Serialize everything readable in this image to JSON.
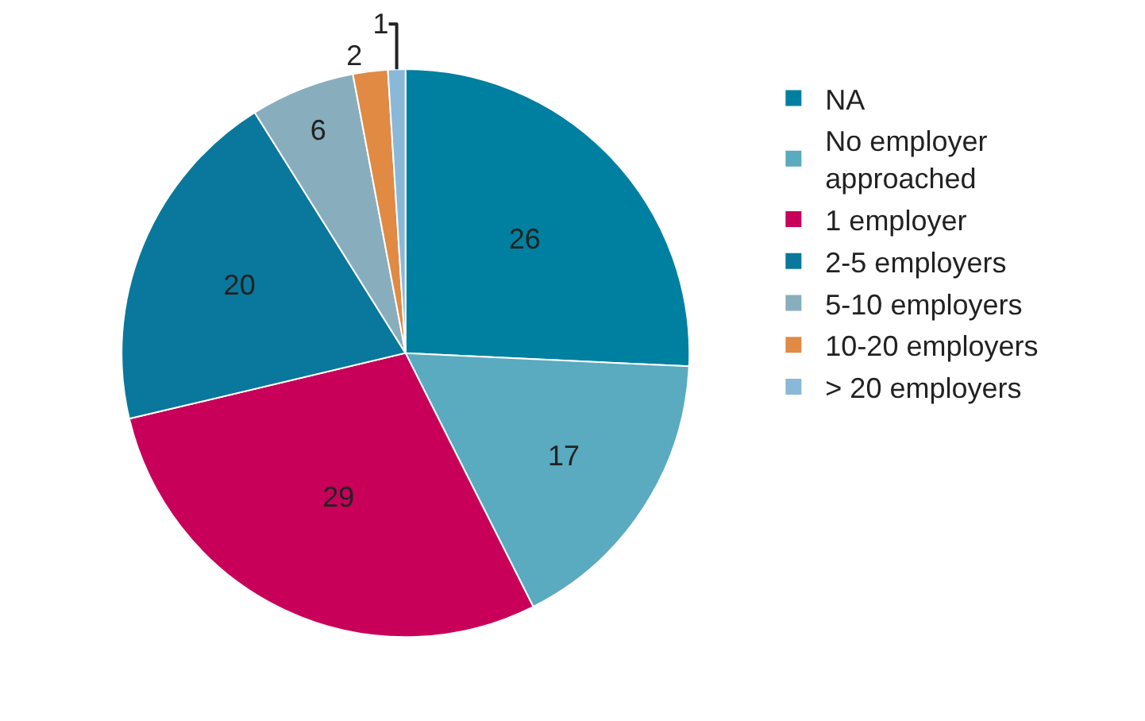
{
  "chart_data": {
    "type": "pie",
    "categories": [
      "NA",
      "No employer approached",
      "1 employer",
      "2-5 employers",
      "5-10 employers",
      "10-20 employers",
      "> 20 employers"
    ],
    "values": [
      26,
      17,
      29,
      20,
      6,
      2,
      1
    ],
    "colors": [
      "#0080a0",
      "#5aaac0",
      "#c8005a",
      "#0a789c",
      "#88aebe",
      "#e08a44",
      "#8ab8d8"
    ],
    "data_labels": true,
    "legend": "right"
  }
}
